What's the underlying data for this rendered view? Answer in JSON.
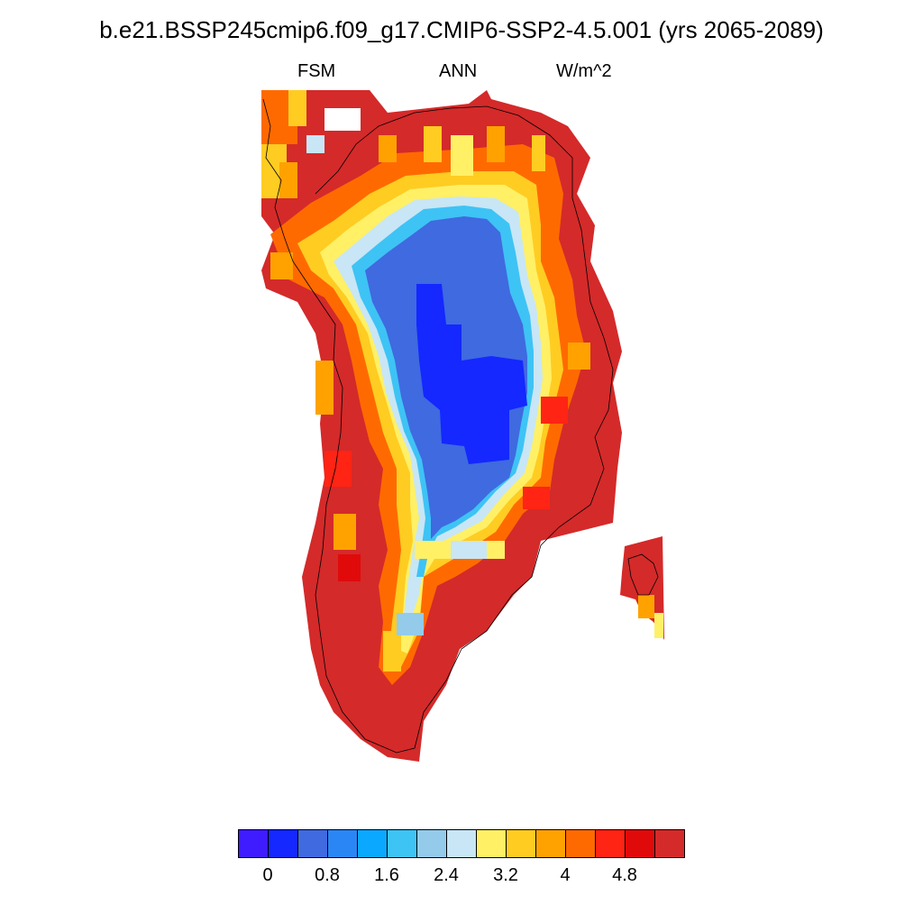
{
  "title": "b.e21.BSSP245cmip6.f09_g17.CMIP6-SSP2-4.5.001 (yrs 2065-2089)",
  "subtitle_left": "FSM",
  "subtitle_center": "ANN",
  "subtitle_right": "W/m^2",
  "colorbar": {
    "colors": [
      "#3f1cff",
      "#1428ff",
      "#3f6ae0",
      "#2b86f5",
      "#0aa8ff",
      "#3ec3f5",
      "#94cbea",
      "#c8e6f5",
      "#fff066",
      "#ffcc22",
      "#ffa200",
      "#ff6a00",
      "#ff2414",
      "#e00a0a",
      "#d42a2a"
    ],
    "tick_labels": [
      "0",
      "0.8",
      "1.6",
      "2.4",
      "3.2",
      "4",
      "4.8"
    ]
  },
  "chart_data": {
    "type": "heatmap",
    "title": "b.e21.BSSP245cmip6.f09_g17.CMIP6-SSP2-4.5.001 (yrs 2065-2089)",
    "variable": "FSM",
    "season": "ANN",
    "units": "W/m^2",
    "region": "Greenland",
    "levels": [
      0,
      0.4,
      0.8,
      1.2,
      1.6,
      2.0,
      2.4,
      2.8,
      3.2,
      3.6,
      4.0,
      4.4,
      4.8,
      5.2
    ],
    "description_values": {
      "interior_ice_sheet_min": 0.4,
      "interior_ice_sheet_typical": 0.8,
      "transition_zone": 2.8,
      "coastal_margin": 5.2
    }
  }
}
